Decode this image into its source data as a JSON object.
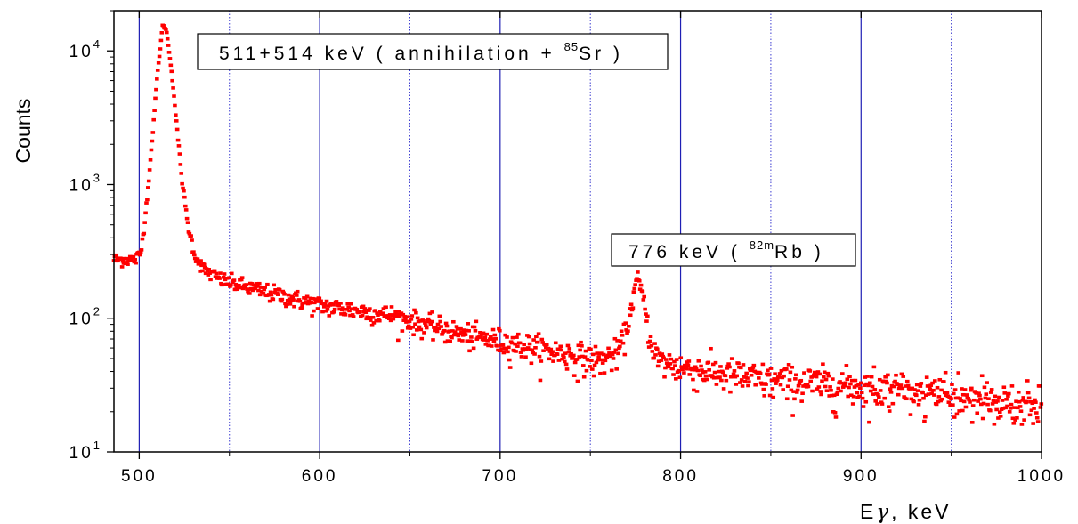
{
  "chart_data": {
    "type": "scatter",
    "ylabel": "Counts",
    "xlabel": "Eγ, keV",
    "xlabel_parts": {
      "prefix": "E",
      "symbol": "γ",
      "suffix": ", keV"
    },
    "xlim": [
      486,
      1000
    ],
    "ylim": [
      10,
      20000
    ],
    "yscale": "log",
    "x_ticks": [
      500,
      600,
      700,
      800,
      900,
      1000
    ],
    "x_tick_labels": [
      "500",
      "600",
      "700",
      "800",
      "900",
      "1000"
    ],
    "y_ticks": [
      {
        "value": 10,
        "base": "10",
        "exp": "1"
      },
      {
        "value": 100,
        "base": "10",
        "exp": "2"
      },
      {
        "value": 1000,
        "base": "10",
        "exp": "3"
      },
      {
        "value": 10000,
        "base": "10",
        "exp": "4"
      }
    ],
    "grid_major_x": [
      500,
      600,
      700,
      800,
      900
    ],
    "grid_minor_x": [
      550,
      650,
      750,
      850,
      950
    ],
    "grid_major_color": "#1f1fb4",
    "grid_minor_color": "#3a3ad0",
    "marker_color": "#ff0000",
    "annotations": [
      {
        "parts": [
          "511+514 keV ( annihilation + ",
          "85",
          "Sr )"
        ],
        "x_anchor": 514,
        "y_anchor": 16000
      },
      {
        "parts": [
          "776 keV ( ",
          "82m",
          "Rb )"
        ],
        "x_anchor": 776,
        "y_anchor": 200
      }
    ],
    "profile": [
      {
        "x": 486,
        "y": 275
      },
      {
        "x": 498,
        "y": 275
      },
      {
        "x": 501,
        "y": 310
      },
      {
        "x": 504,
        "y": 700
      },
      {
        "x": 507,
        "y": 2000
      },
      {
        "x": 510,
        "y": 6500
      },
      {
        "x": 513,
        "y": 15500
      },
      {
        "x": 515,
        "y": 14500
      },
      {
        "x": 518,
        "y": 7000
      },
      {
        "x": 521,
        "y": 2600
      },
      {
        "x": 524,
        "y": 1000
      },
      {
        "x": 527,
        "y": 500
      },
      {
        "x": 531,
        "y": 290
      },
      {
        "x": 536,
        "y": 230
      },
      {
        "x": 545,
        "y": 195
      },
      {
        "x": 560,
        "y": 170
      },
      {
        "x": 600,
        "y": 125
      },
      {
        "x": 640,
        "y": 105
      },
      {
        "x": 680,
        "y": 75
      },
      {
        "x": 720,
        "y": 60
      },
      {
        "x": 755,
        "y": 48
      },
      {
        "x": 765,
        "y": 55
      },
      {
        "x": 770,
        "y": 80
      },
      {
        "x": 774,
        "y": 150
      },
      {
        "x": 776,
        "y": 200
      },
      {
        "x": 779,
        "y": 150
      },
      {
        "x": 783,
        "y": 70
      },
      {
        "x": 788,
        "y": 48
      },
      {
        "x": 800,
        "y": 43
      },
      {
        "x": 850,
        "y": 34
      },
      {
        "x": 900,
        "y": 31
      },
      {
        "x": 950,
        "y": 26
      },
      {
        "x": 1000,
        "y": 22
      }
    ]
  }
}
